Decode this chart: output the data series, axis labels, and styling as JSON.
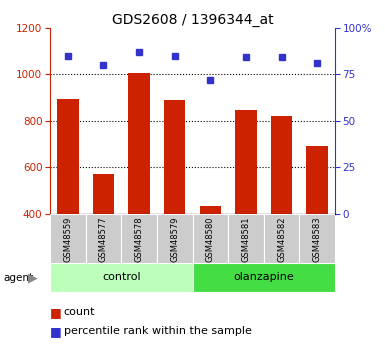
{
  "title": "GDS2608 / 1396344_at",
  "samples": [
    "GSM48559",
    "GSM48577",
    "GSM48578",
    "GSM48579",
    "GSM48580",
    "GSM48581",
    "GSM48582",
    "GSM48583"
  ],
  "counts": [
    895,
    570,
    1005,
    890,
    435,
    848,
    822,
    690
  ],
  "percentiles": [
    85,
    80,
    87,
    85,
    72,
    84,
    84,
    81
  ],
  "groups": [
    "control",
    "control",
    "control",
    "control",
    "olanzapine",
    "olanzapine",
    "olanzapine",
    "olanzapine"
  ],
  "bar_color": "#cc2200",
  "dot_color": "#3333cc",
  "bar_bottom": 400,
  "ylim_left": [
    400,
    1200
  ],
  "ylim_right": [
    0,
    100
  ],
  "yticks_left": [
    400,
    600,
    800,
    1000,
    1200
  ],
  "yticks_right": [
    0,
    25,
    50,
    75,
    100
  ],
  "control_bg": "#bbffbb",
  "olanzapine_bg": "#44dd44",
  "tick_area_bg": "#cccccc",
  "left_axis_color": "#cc2200",
  "right_axis_color": "#3333cc",
  "grid_color": "#000000",
  "figsize": [
    3.85,
    3.45
  ],
  "dpi": 100
}
